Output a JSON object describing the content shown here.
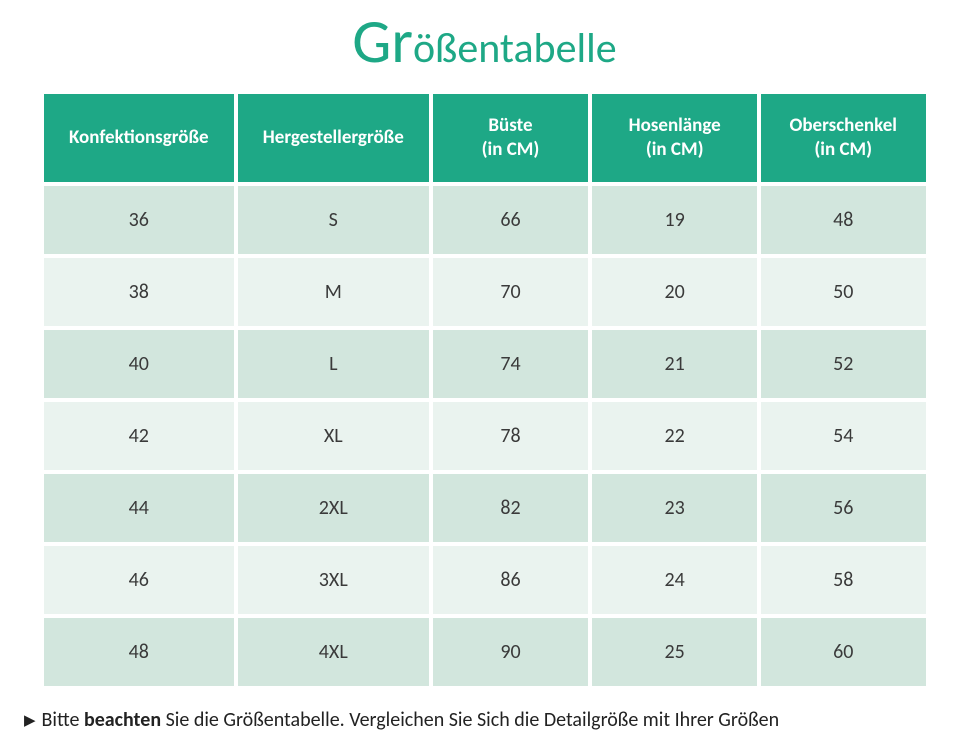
{
  "title": {
    "big": "Gr",
    "rest": "ößentabelle"
  },
  "table": {
    "header_bg": "#1ea886",
    "header_fg": "#ffffff",
    "row_odd_bg": "#d2e6dd",
    "row_even_bg": "#eaf3ef",
    "columns": [
      "Konfektionsgröße",
      "Hergestellergröße",
      "Büste\n(in CM)",
      "Hosenlänge\n(in CM)",
      "Oberschenkel\n(in CM)"
    ],
    "rows": [
      [
        "36",
        "S",
        "66",
        "19",
        "48"
      ],
      [
        "38",
        "M",
        "70",
        "20",
        "50"
      ],
      [
        "40",
        "L",
        "74",
        "21",
        "52"
      ],
      [
        "42",
        "XL",
        "78",
        "22",
        "54"
      ],
      [
        "44",
        "2XL",
        "82",
        "23",
        "56"
      ],
      [
        "46",
        "3XL",
        "86",
        "24",
        "58"
      ],
      [
        "48",
        "4XL",
        "90",
        "25",
        "60"
      ]
    ]
  },
  "note": {
    "pre": "Bitte ",
    "bold": "beachten",
    "post": " Sie die Größentabelle. Vergleichen Sie Sich die Detailgröße mit Ihrer Größen"
  }
}
